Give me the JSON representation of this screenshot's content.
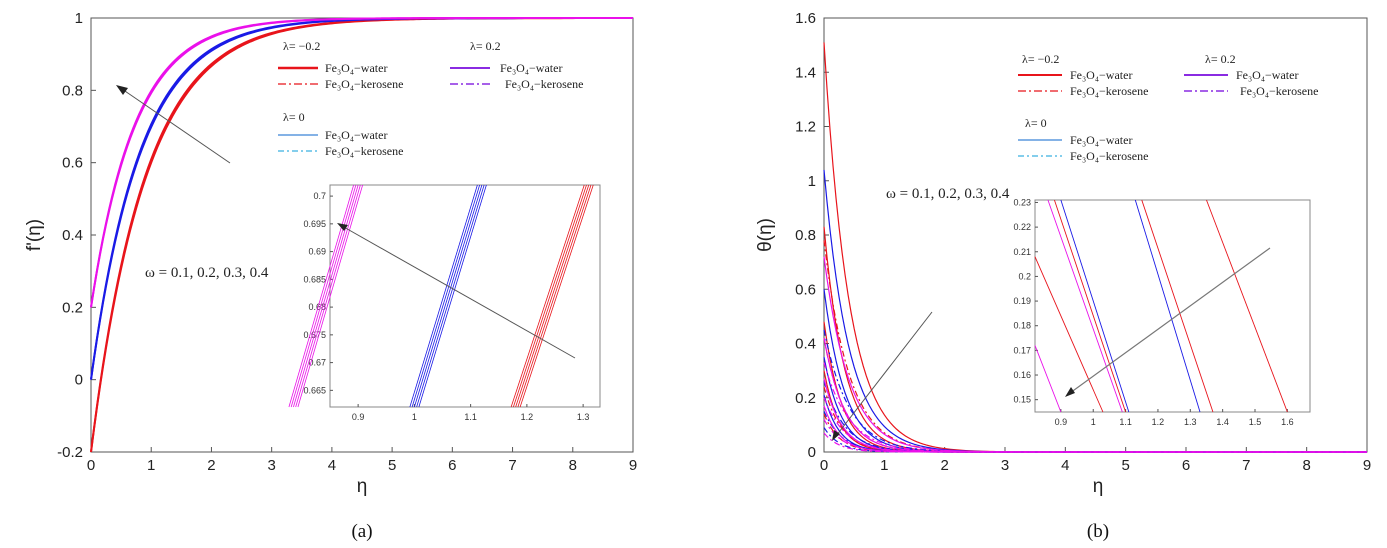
{
  "chart_data": [
    {
      "panel": "(a)",
      "type": "line",
      "xlabel": "η",
      "ylabel": "f'(η)",
      "xlim": [
        0,
        9
      ],
      "ylim": [
        -0.2,
        1
      ],
      "xticks": [
        "0",
        "1",
        "2",
        "3",
        "4",
        "5",
        "6",
        "7",
        "8",
        "9"
      ],
      "yticks": [
        "-0.2",
        "0",
        "0.2",
        "0.4",
        "0.6",
        "0.8",
        "1"
      ],
      "annotation": "ω = 0.1, 0.2, 0.3, 0.4",
      "legend_groups": [
        {
          "title": "λ= −0.2",
          "water": "Fe₃O₄−water",
          "kerosene": "Fe₃O₄−kerosene"
        },
        {
          "title": "λ= 0.2",
          "water": "Fe₃O₄−water",
          "kerosene": "Fe₃O₄−kerosene"
        },
        {
          "title": "λ= 0",
          "water": "Fe₃O₄−water",
          "kerosene": "Fe₃O₄−kerosene"
        }
      ],
      "series": [
        {
          "name": "λ= −0.2",
          "color": "#e8141b",
          "start": -0.2,
          "k": 1.1
        },
        {
          "name": "λ= 0",
          "color": "#1a1ae6",
          "start": 0.0,
          "k": 1.2
        },
        {
          "name": "λ= 0.2",
          "color": "#ea10ea",
          "start": 0.2,
          "k": 1.35
        }
      ],
      "inset": {
        "xlim": [
          0.85,
          1.33
        ],
        "ylim": [
          0.662,
          0.702
        ],
        "xticks": [
          "0.9",
          "1",
          "1.1",
          "1.2",
          "1.3"
        ],
        "yticks": [
          "0.665",
          "0.67",
          "0.675",
          "0.68",
          "0.685",
          "0.69",
          "0.695",
          "0.7"
        ],
        "lines": [
          {
            "color": "#ea10ea",
            "x_at_ymin": 0.785,
            "x_at_ymax": 0.9
          },
          {
            "color": "#1a1ae6",
            "x_at_ymin": 1.0,
            "x_at_ymax": 1.12
          },
          {
            "color": "#e8141b",
            "x_at_ymin": 1.18,
            "x_at_ymax": 1.31
          }
        ]
      }
    },
    {
      "panel": "(b)",
      "type": "line",
      "xlabel": "η",
      "ylabel": "θ(η)",
      "xlim": [
        0,
        9
      ],
      "ylim": [
        0,
        1.6
      ],
      "xticks": [
        "0",
        "1",
        "2",
        "3",
        "4",
        "5",
        "6",
        "7",
        "8",
        "9"
      ],
      "yticks": [
        "0",
        "0.2",
        "0.4",
        "0.6",
        "0.8",
        "1",
        "1.2",
        "1.4",
        "1.6"
      ],
      "annotation": "ω = 0.1, 0.2, 0.3, 0.4",
      "legend_groups": [
        {
          "title": "λ= −0.2",
          "water": "Fe₃O₄−water",
          "kerosene": "Fe₃O₄−kerosene"
        },
        {
          "title": "λ= 0.2",
          "water": "Fe₃O₄−water",
          "kerosene": "Fe₃O₄−kerosene"
        },
        {
          "title": "λ= 0",
          "water": "Fe₃O₄−water",
          "kerosene": "Fe₃O₄−kerosene"
        }
      ],
      "series": [
        {
          "name": "λ= −0.2",
          "color": "#e8141b",
          "starts": [
            1.51,
            0.83,
            0.48,
            0.3,
            0.78,
            0.42,
            0.24,
            0.14
          ]
        },
        {
          "name": "λ= 0",
          "color": "#1a1ae6",
          "starts": [
            1.04,
            0.6,
            0.35,
            0.21,
            0.45,
            0.26,
            0.15,
            0.09
          ]
        },
        {
          "name": "λ= 0.2",
          "color": "#ea10ea",
          "starts": [
            0.72,
            0.42,
            0.27,
            0.17,
            0.33,
            0.2,
            0.12,
            0.07
          ]
        }
      ],
      "inset": {
        "xlim": [
          0.82,
          1.67
        ],
        "ylim": [
          0.145,
          0.231
        ],
        "xticks": [
          "0.9",
          "1",
          "1.1",
          "1.2",
          "1.3",
          "1.4",
          "1.5",
          "1.6"
        ],
        "yticks": [
          "0.15",
          "0.16",
          "0.17",
          "0.18",
          "0.19",
          "0.2",
          "0.21",
          "0.22",
          "0.23"
        ],
        "lines": [
          {
            "color": "#ea10ea",
            "x0": 0.82,
            "y0": 0.172,
            "x1": 0.9,
            "y1": 0.145
          },
          {
            "color": "#ea10ea",
            "x0": 0.86,
            "y0": 0.231,
            "x1": 1.09,
            "y1": 0.145
          },
          {
            "color": "#e8141b",
            "x0": 0.82,
            "y0": 0.208,
            "x1": 1.03,
            "y1": 0.145
          },
          {
            "color": "#e8141b",
            "x0": 0.88,
            "y0": 0.231,
            "x1": 1.1,
            "y1": 0.145
          },
          {
            "color": "#1a1ae6",
            "x0": 0.9,
            "y0": 0.231,
            "x1": 1.11,
            "y1": 0.145
          },
          {
            "color": "#1a1ae6",
            "x0": 1.13,
            "y0": 0.231,
            "x1": 1.33,
            "y1": 0.145
          },
          {
            "color": "#e8141b",
            "x0": 1.15,
            "y0": 0.231,
            "x1": 1.37,
            "y1": 0.145
          },
          {
            "color": "#e8141b",
            "x0": 1.35,
            "y0": 0.231,
            "x1": 1.6,
            "y1": 0.145
          }
        ]
      }
    }
  ]
}
